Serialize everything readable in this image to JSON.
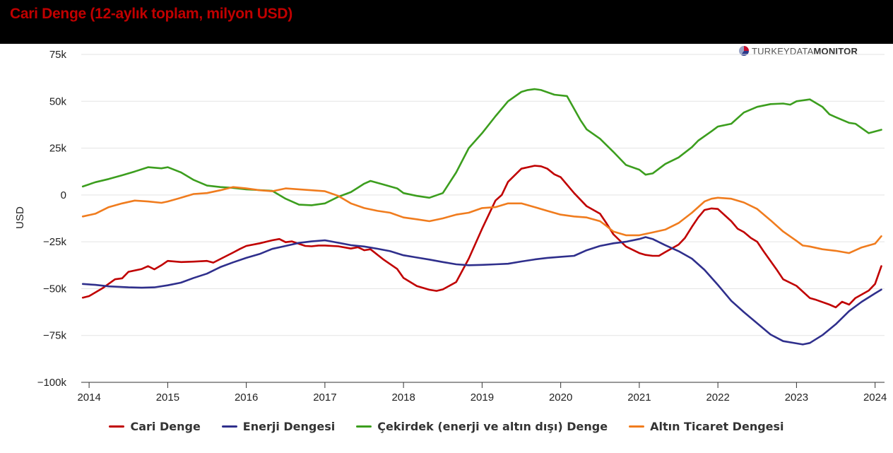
{
  "header": {
    "title": "Cari Denge (12-aylık toplam, milyon USD)"
  },
  "logo": {
    "light": "TURKEYDATA",
    "bold": "MONITOR"
  },
  "chart_data": {
    "type": "line",
    "title": "Cari Denge (12-aylık toplam, milyon USD)",
    "ylabel": "USD",
    "xlabel": "",
    "ylim": [
      -100000,
      75000
    ],
    "xlim": [
      2013.9,
      2024.12
    ],
    "y_ticks": [
      75000,
      50000,
      25000,
      0,
      -25000,
      -50000,
      -75000,
      -100000
    ],
    "y_tick_labels": [
      "75k",
      "50k",
      "25k",
      "0",
      "−25k",
      "−50k",
      "−75k",
      "−100k"
    ],
    "x_ticks": [
      2014,
      2015,
      2016,
      2017,
      2018,
      2019,
      2020,
      2021,
      2022,
      2023,
      2024
    ],
    "x_tick_labels": [
      "2014",
      "2015",
      "2016",
      "2017",
      "2018",
      "2019",
      "2020",
      "2021",
      "2022",
      "2023",
      "2024"
    ],
    "grid": true,
    "legend_position": "bottom",
    "series": [
      {
        "name": "Cari Denge",
        "color": "#c00000",
        "x": [
          2013.92,
          2014.0,
          2014.17,
          2014.33,
          2014.42,
          2014.5,
          2014.67,
          2014.75,
          2014.83,
          2014.92,
          2015.0,
          2015.17,
          2015.33,
          2015.5,
          2015.58,
          2015.75,
          2015.83,
          2015.92,
          2016.0,
          2016.17,
          2016.33,
          2016.42,
          2016.5,
          2016.58,
          2016.75,
          2016.83,
          2016.92,
          2017.0,
          2017.17,
          2017.33,
          2017.42,
          2017.5,
          2017.58,
          2017.75,
          2017.92,
          2018.0,
          2018.17,
          2018.33,
          2018.42,
          2018.5,
          2018.67,
          2018.83,
          2019.0,
          2019.17,
          2019.25,
          2019.33,
          2019.5,
          2019.67,
          2019.75,
          2019.83,
          2019.92,
          2020.0,
          2020.17,
          2020.33,
          2020.5,
          2020.58,
          2020.67,
          2020.83,
          2021.0,
          2021.08,
          2021.17,
          2021.25,
          2021.33,
          2021.5,
          2021.58,
          2021.67,
          2021.75,
          2021.83,
          2021.92,
          2022.0,
          2022.17,
          2022.25,
          2022.33,
          2022.42,
          2022.5,
          2022.58,
          2022.75,
          2022.83,
          2023.0,
          2023.17,
          2023.25,
          2023.42,
          2023.5,
          2023.58,
          2023.67,
          2023.75,
          2023.92,
          2024.0,
          2024.08
        ],
        "values": [
          -54800,
          -54000,
          -49800,
          -45000,
          -44500,
          -41000,
          -39500,
          -38000,
          -39700,
          -37500,
          -35200,
          -35800,
          -35600,
          -35200,
          -36100,
          -32500,
          -30800,
          -28800,
          -27200,
          -25800,
          -24200,
          -23500,
          -25200,
          -24800,
          -27200,
          -27400,
          -27000,
          -27000,
          -27400,
          -28600,
          -27900,
          -29500,
          -29000,
          -34600,
          -39500,
          -44300,
          -48600,
          -50600,
          -51200,
          -50400,
          -46500,
          -34000,
          -18000,
          -3000,
          0,
          7000,
          14000,
          15600,
          15300,
          14000,
          11000,
          9500,
          1000,
          -6000,
          -10000,
          -15000,
          -21000,
          -27500,
          -31000,
          -32000,
          -32500,
          -32500,
          -30500,
          -26500,
          -23000,
          -17000,
          -12000,
          -8000,
          -7200,
          -7500,
          -14000,
          -18000,
          -19800,
          -23000,
          -25000,
          -30000,
          -40000,
          -45000,
          -48500,
          -55000,
          -56000,
          -58500,
          -60000,
          -57000,
          -58500,
          -55000,
          -51000,
          -47500,
          -38000
        ]
      },
      {
        "name": "Enerji Dengesi",
        "color": "#2f2f8c",
        "x": [
          2013.92,
          2014.08,
          2014.25,
          2014.5,
          2014.67,
          2014.83,
          2015.0,
          2015.17,
          2015.33,
          2015.5,
          2015.67,
          2015.83,
          2016.0,
          2016.17,
          2016.33,
          2016.5,
          2016.67,
          2016.83,
          2017.0,
          2017.17,
          2017.33,
          2017.5,
          2017.67,
          2017.83,
          2018.0,
          2018.17,
          2018.33,
          2018.5,
          2018.67,
          2018.83,
          2019.0,
          2019.17,
          2019.33,
          2019.5,
          2019.67,
          2019.83,
          2020.0,
          2020.17,
          2020.33,
          2020.5,
          2020.67,
          2020.83,
          2021.0,
          2021.08,
          2021.17,
          2021.33,
          2021.5,
          2021.67,
          2021.83,
          2022.0,
          2022.17,
          2022.33,
          2022.5,
          2022.67,
          2022.83,
          2023.0,
          2023.08,
          2023.17,
          2023.33,
          2023.5,
          2023.67,
          2023.83,
          2024.0,
          2024.08
        ],
        "values": [
          -47500,
          -48000,
          -48800,
          -49300,
          -49500,
          -49300,
          -48200,
          -46800,
          -44300,
          -42000,
          -38500,
          -36000,
          -33600,
          -31500,
          -28800,
          -27200,
          -25600,
          -24800,
          -24200,
          -25500,
          -26800,
          -27500,
          -28700,
          -30000,
          -32200,
          -33400,
          -34500,
          -35800,
          -37000,
          -37500,
          -37300,
          -37000,
          -36700,
          -35500,
          -34400,
          -33600,
          -33000,
          -32500,
          -29500,
          -27200,
          -25800,
          -25000,
          -23500,
          -22500,
          -23500,
          -26800,
          -30000,
          -34000,
          -40000,
          -48000,
          -56500,
          -62500,
          -68500,
          -74500,
          -78000,
          -79200,
          -79800,
          -79000,
          -74800,
          -69000,
          -62000,
          -57000,
          -52500,
          -50500
        ]
      },
      {
        "name": "Çekirdek (enerji ve altın dışı) Denge",
        "color": "#3c9e1e",
        "x": [
          2013.92,
          2014.08,
          2014.25,
          2014.42,
          2014.58,
          2014.75,
          2014.92,
          2015.0,
          2015.17,
          2015.33,
          2015.5,
          2015.67,
          2015.83,
          2016.0,
          2016.17,
          2016.33,
          2016.5,
          2016.67,
          2016.83,
          2017.0,
          2017.17,
          2017.33,
          2017.5,
          2017.58,
          2017.75,
          2017.92,
          2018.0,
          2018.17,
          2018.33,
          2018.5,
          2018.67,
          2018.83,
          2019.0,
          2019.17,
          2019.33,
          2019.5,
          2019.58,
          2019.67,
          2019.75,
          2019.92,
          2020.08,
          2020.25,
          2020.33,
          2020.5,
          2020.67,
          2020.83,
          2021.0,
          2021.08,
          2021.17,
          2021.33,
          2021.5,
          2021.67,
          2021.75,
          2021.92,
          2022.0,
          2022.17,
          2022.33,
          2022.5,
          2022.67,
          2022.83,
          2022.92,
          2023.0,
          2023.17,
          2023.33,
          2023.42,
          2023.5,
          2023.67,
          2023.75,
          2023.92,
          2024.08
        ],
        "values": [
          4500,
          6800,
          8500,
          10500,
          12500,
          14800,
          14200,
          14800,
          12000,
          8000,
          5000,
          4200,
          3800,
          3000,
          2600,
          2200,
          -2000,
          -5200,
          -5500,
          -4500,
          -1000,
          1500,
          6000,
          7500,
          5500,
          3500,
          1000,
          -500,
          -1500,
          1000,
          12000,
          25000,
          33000,
          42000,
          50000,
          55000,
          56000,
          56500,
          56000,
          53500,
          52800,
          40000,
          35000,
          30000,
          23000,
          16000,
          13500,
          10800,
          11500,
          16500,
          20000,
          25500,
          29000,
          34000,
          36500,
          38000,
          44000,
          47000,
          48500,
          48800,
          48200,
          50000,
          51000,
          47000,
          43000,
          41500,
          38500,
          38000,
          33000,
          34800
        ]
      },
      {
        "name": "Altın Ticaret Dengesi",
        "color": "#f07c1e",
        "x": [
          2013.92,
          2014.08,
          2014.25,
          2014.42,
          2014.58,
          2014.75,
          2014.92,
          2015.0,
          2015.17,
          2015.33,
          2015.5,
          2015.67,
          2015.83,
          2016.0,
          2016.17,
          2016.33,
          2016.5,
          2016.67,
          2016.83,
          2017.0,
          2017.17,
          2017.33,
          2017.5,
          2017.67,
          2017.83,
          2018.0,
          2018.17,
          2018.33,
          2018.5,
          2018.67,
          2018.83,
          2019.0,
          2019.17,
          2019.33,
          2019.5,
          2019.67,
          2019.83,
          2020.0,
          2020.17,
          2020.33,
          2020.5,
          2020.58,
          2020.67,
          2020.83,
          2021.0,
          2021.17,
          2021.33,
          2021.5,
          2021.67,
          2021.83,
          2021.92,
          2022.0,
          2022.17,
          2022.33,
          2022.5,
          2022.67,
          2022.83,
          2023.0,
          2023.08,
          2023.17,
          2023.33,
          2023.5,
          2023.67,
          2023.83,
          2024.0,
          2024.08
        ],
        "values": [
          -11500,
          -10000,
          -6500,
          -4500,
          -3000,
          -3500,
          -4200,
          -3500,
          -1500,
          500,
          1000,
          2500,
          4200,
          3500,
          2500,
          2000,
          3500,
          3000,
          2500,
          2000,
          -500,
          -4500,
          -7000,
          -8500,
          -9500,
          -12000,
          -13000,
          -14000,
          -12500,
          -10500,
          -9500,
          -7000,
          -6500,
          -4500,
          -4500,
          -6500,
          -8500,
          -10500,
          -11500,
          -12000,
          -14000,
          -16500,
          -19500,
          -21500,
          -21500,
          -20000,
          -18500,
          -15000,
          -9500,
          -3500,
          -2000,
          -1500,
          -2000,
          -4000,
          -7500,
          -13500,
          -19500,
          -24500,
          -27000,
          -27500,
          -29000,
          -29800,
          -31000,
          -28000,
          -26000,
          -22000
        ]
      }
    ]
  }
}
